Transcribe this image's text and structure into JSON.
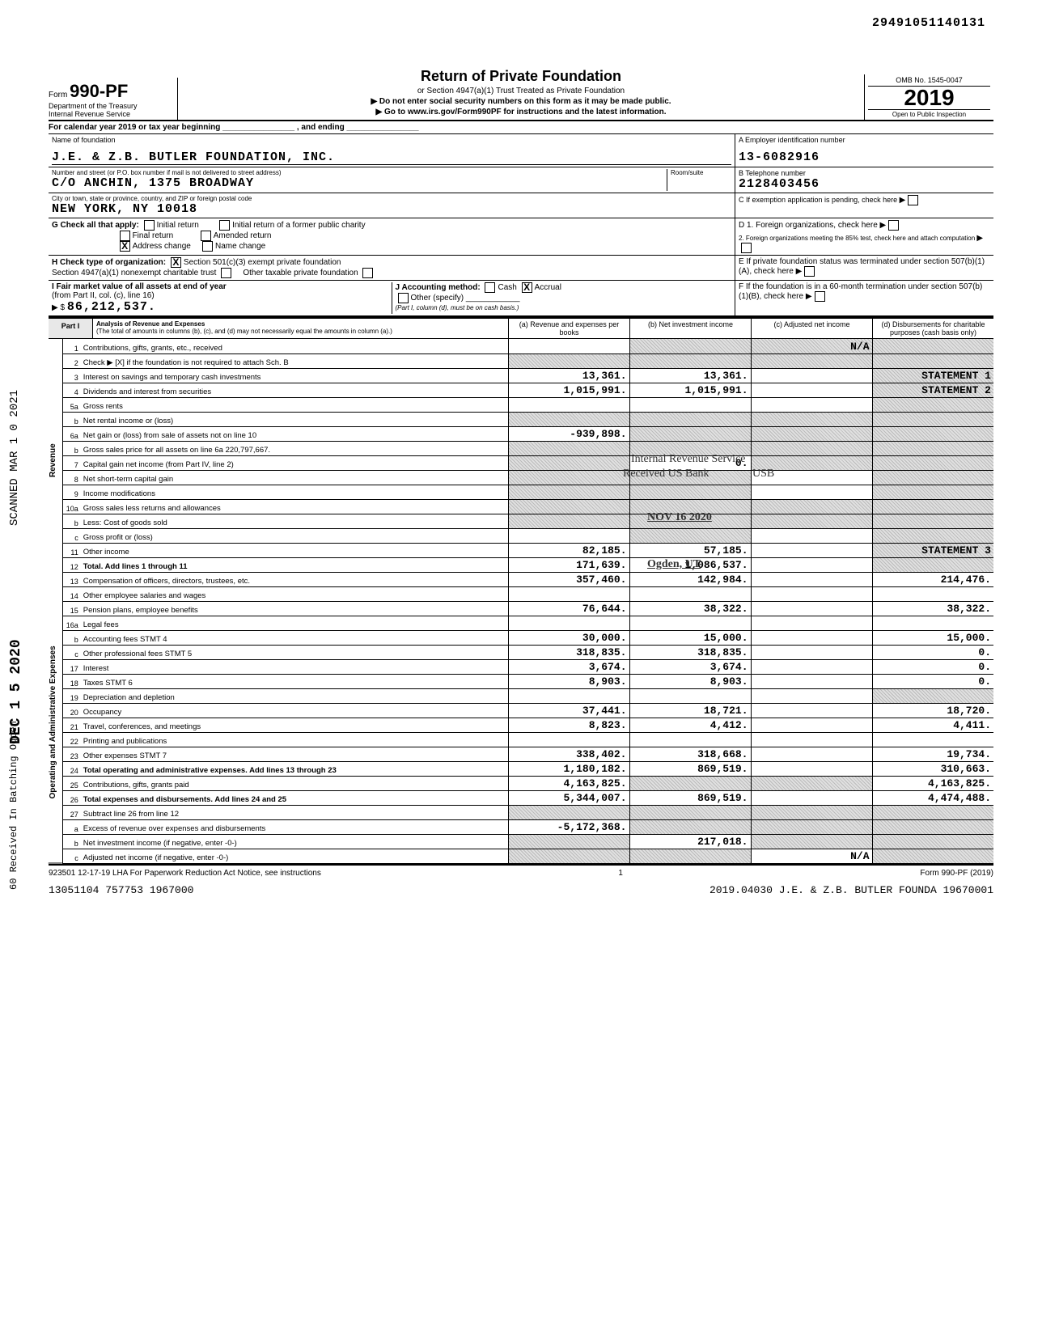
{
  "top_number": "29491051140131",
  "form": {
    "number": "990-PF",
    "formword": "Form",
    "dept": "Department of the Treasury",
    "irs": "Internal Revenue Service",
    "title": "Return of Private Foundation",
    "sub1": "or Section 4947(a)(1) Trust Treated as Private Foundation",
    "sub2": "▶ Do not enter social security numbers on this form as it may be made public.",
    "sub3": "▶ Go to www.irs.gov/Form990PF for instructions and the latest information.",
    "omb": "OMB No. 1545-0047",
    "year": "2019",
    "open": "Open to Public Inspection"
  },
  "calendar_row": "For calendar year 2019 or tax year beginning ________________ , and ending ________________",
  "ident": {
    "name_label": "Name of foundation",
    "name": "J.E. & Z.B. BUTLER FOUNDATION, INC.",
    "addr_label": "Number and street (or P.O. box number if mail is not delivered to street address)",
    "addr": "C/O ANCHIN, 1375 BROADWAY",
    "room_label": "Room/suite",
    "city_label": "City or town, state or province, country, and ZIP or foreign postal code",
    "city": "NEW YORK, NY  10018",
    "ein_label": "A Employer identification number",
    "ein": "13-6082916",
    "tel_label": "B Telephone number",
    "tel": "2128403456",
    "c_label": "C If exemption application is pending, check here",
    "d1_label": "D 1. Foreign organizations, check here",
    "d2_label": "2. Foreign organizations meeting the 85% test, check here and attach computation",
    "e_label": "E If private foundation status was terminated under section 507(b)(1)(A), check here",
    "f_label": "F If the foundation is in a 60-month termination under section 507(b)(1)(B), check here"
  },
  "g": {
    "label": "G  Check all that apply:",
    "initial": "Initial return",
    "final": "Final return",
    "address_change": "Address change",
    "initial_former": "Initial return of a former public charity",
    "amended": "Amended return",
    "name_change": "Name change",
    "address_change_checked": "X"
  },
  "h": {
    "label": "H  Check type of organization:",
    "opt1": "Section 501(c)(3) exempt private foundation",
    "opt1_checked": "X",
    "opt2": "Section 4947(a)(1) nonexempt charitable trust",
    "opt3": "Other taxable private foundation"
  },
  "i": {
    "label": "I  Fair market value of all assets at end of year",
    "sub": "(from Part II, col. (c), line 16)",
    "arrow": "▶ $",
    "value": "86,212,537."
  },
  "j": {
    "label": "J  Accounting method:",
    "cash": "Cash",
    "accrual": "Accrual",
    "accrual_checked": "X",
    "other": "Other (specify)",
    "note": "(Part I, column (d), must be on cash basis.)"
  },
  "part1": {
    "label": "Part I",
    "title": "Analysis of Revenue and Expenses",
    "note": "(The total of amounts in columns (b), (c), and (d) may not necessarily equal the amounts in column (a).)",
    "col_a": "(a) Revenue and expenses per books",
    "col_b": "(b) Net investment income",
    "col_c": "(c) Adjusted net income",
    "col_d": "(d) Disbursements for charitable purposes (cash basis only)"
  },
  "section_labels": {
    "revenue": "Revenue",
    "opadmin": "Operating and Administrative Expenses"
  },
  "rows": [
    {
      "n": "1",
      "lbl": "Contributions, gifts, grants, etc., received",
      "a": "",
      "b": "",
      "c": "N/A",
      "d": "",
      "shade_b": true,
      "shade_c": true,
      "shade_d": true
    },
    {
      "n": "2",
      "lbl": "Check ▶ [X] if the foundation is not required to attach Sch. B",
      "a": "",
      "b": "",
      "c": "",
      "d": "",
      "shade_a": true,
      "shade_b": true,
      "shade_c": true,
      "shade_d": true
    },
    {
      "n": "3",
      "lbl": "Interest on savings and temporary cash investments",
      "a": "13,361.",
      "b": "13,361.",
      "c": "",
      "d": "STATEMENT 1",
      "shade_d": true
    },
    {
      "n": "4",
      "lbl": "Dividends and interest from securities",
      "a": "1,015,991.",
      "b": "1,015,991.",
      "c": "",
      "d": "STATEMENT 2",
      "shade_d": true
    },
    {
      "n": "5a",
      "lbl": "Gross rents",
      "a": "",
      "b": "",
      "c": "",
      "d": "",
      "shade_d": true
    },
    {
      "n": "b",
      "lbl": "Net rental income or (loss)",
      "a": "",
      "b": "",
      "c": "",
      "d": "",
      "shade_a": true,
      "shade_b": true,
      "shade_c": true,
      "shade_d": true
    },
    {
      "n": "6a",
      "lbl": "Net gain or (loss) from sale of assets not on line 10",
      "a": "-939,898.",
      "b": "",
      "c": "",
      "d": "",
      "shade_b": true,
      "shade_c": true,
      "shade_d": true
    },
    {
      "n": "b",
      "lbl": "Gross sales price for all assets on line 6a   220,797,667.",
      "a": "",
      "b": "",
      "c": "",
      "d": "",
      "shade_a": true,
      "shade_b": true,
      "shade_c": true,
      "shade_d": true
    },
    {
      "n": "7",
      "lbl": "Capital gain net income (from Part IV, line 2)",
      "a": "",
      "b": "0.",
      "c": "",
      "d": "",
      "shade_a": true,
      "shade_c": true,
      "shade_d": true
    },
    {
      "n": "8",
      "lbl": "Net short-term capital gain",
      "a": "",
      "b": "",
      "c": "",
      "d": "",
      "shade_a": true,
      "shade_b": true,
      "shade_d": true
    },
    {
      "n": "9",
      "lbl": "Income modifications",
      "a": "",
      "b": "",
      "c": "",
      "d": "",
      "shade_a": true,
      "shade_b": true,
      "shade_d": true
    },
    {
      "n": "10a",
      "lbl": "Gross sales less returns and allowances",
      "a": "",
      "b": "",
      "c": "",
      "d": "",
      "shade_a": true,
      "shade_b": true,
      "shade_c": true,
      "shade_d": true
    },
    {
      "n": "b",
      "lbl": "Less: Cost of goods sold",
      "a": "",
      "b": "",
      "c": "",
      "d": "",
      "shade_a": true,
      "shade_b": true,
      "shade_c": true,
      "shade_d": true
    },
    {
      "n": "c",
      "lbl": "Gross profit or (loss)",
      "a": "",
      "b": "",
      "c": "",
      "d": "",
      "shade_b": true,
      "shade_d": true
    },
    {
      "n": "11",
      "lbl": "Other income",
      "a": "82,185.",
      "b": "57,185.",
      "c": "",
      "d": "STATEMENT 3",
      "shade_d": true
    },
    {
      "n": "12",
      "lbl": "Total. Add lines 1 through 11",
      "a": "171,639.",
      "b": "1,086,537.",
      "c": "",
      "d": "",
      "shade_d": true,
      "bold": true
    },
    {
      "n": "13",
      "lbl": "Compensation of officers, directors, trustees, etc.",
      "a": "357,460.",
      "b": "142,984.",
      "c": "",
      "d": "214,476."
    },
    {
      "n": "14",
      "lbl": "Other employee salaries and wages",
      "a": "",
      "b": "",
      "c": "",
      "d": ""
    },
    {
      "n": "15",
      "lbl": "Pension plans, employee benefits",
      "a": "76,644.",
      "b": "38,322.",
      "c": "",
      "d": "38,322."
    },
    {
      "n": "16a",
      "lbl": "Legal fees",
      "a": "",
      "b": "",
      "c": "",
      "d": ""
    },
    {
      "n": "b",
      "lbl": "Accounting fees                          STMT 4",
      "a": "30,000.",
      "b": "15,000.",
      "c": "",
      "d": "15,000."
    },
    {
      "n": "c",
      "lbl": "Other professional fees              STMT 5",
      "a": "318,835.",
      "b": "318,835.",
      "c": "",
      "d": "0."
    },
    {
      "n": "17",
      "lbl": "Interest",
      "a": "3,674.",
      "b": "3,674.",
      "c": "",
      "d": "0."
    },
    {
      "n": "18",
      "lbl": "Taxes                                        STMT 6",
      "a": "8,903.",
      "b": "8,903.",
      "c": "",
      "d": "0."
    },
    {
      "n": "19",
      "lbl": "Depreciation and depletion",
      "a": "",
      "b": "",
      "c": "",
      "d": "",
      "shade_d": true
    },
    {
      "n": "20",
      "lbl": "Occupancy",
      "a": "37,441.",
      "b": "18,721.",
      "c": "",
      "d": "18,720."
    },
    {
      "n": "21",
      "lbl": "Travel, conferences, and meetings",
      "a": "8,823.",
      "b": "4,412.",
      "c": "",
      "d": "4,411."
    },
    {
      "n": "22",
      "lbl": "Printing and publications",
      "a": "",
      "b": "",
      "c": "",
      "d": ""
    },
    {
      "n": "23",
      "lbl": "Other expenses                          STMT 7",
      "a": "338,402.",
      "b": "318,668.",
      "c": "",
      "d": "19,734."
    },
    {
      "n": "24",
      "lbl": "Total operating and administrative expenses. Add lines 13 through 23",
      "a": "1,180,182.",
      "b": "869,519.",
      "c": "",
      "d": "310,663.",
      "bold": true
    },
    {
      "n": "25",
      "lbl": "Contributions, gifts, grants paid",
      "a": "4,163,825.",
      "b": "",
      "c": "",
      "d": "4,163,825.",
      "shade_b": true,
      "shade_c": true
    },
    {
      "n": "26",
      "lbl": "Total expenses and disbursements. Add lines 24 and 25",
      "a": "5,344,007.",
      "b": "869,519.",
      "c": "",
      "d": "4,474,488.",
      "bold": true
    },
    {
      "n": "27",
      "lbl": "Subtract line 26 from line 12",
      "a": "",
      "b": "",
      "c": "",
      "d": "",
      "shade_a": true,
      "shade_b": true,
      "shade_c": true,
      "shade_d": true
    },
    {
      "n": "a",
      "lbl": "Excess of revenue over expenses and disbursements",
      "a": "-5,172,368.",
      "b": "",
      "c": "",
      "d": "",
      "shade_b": true,
      "shade_c": true,
      "shade_d": true
    },
    {
      "n": "b",
      "lbl": "Net investment income (if negative, enter -0-)",
      "a": "",
      "b": "217,018.",
      "c": "",
      "d": "",
      "shade_a": true,
      "shade_c": true,
      "shade_d": true
    },
    {
      "n": "c",
      "lbl": "Adjusted net income (if negative, enter -0-)",
      "a": "",
      "b": "",
      "c": "N/A",
      "d": "",
      "shade_a": true,
      "shade_b": true,
      "shade_d": true
    }
  ],
  "stamps": {
    "irs_received": "Internal Revenue Service",
    "received_us": "Received US Bank",
    "usb": "USB",
    "nov": "NOV 16 2020",
    "ogden": "Ogden, UT"
  },
  "side": {
    "scanned": "SCANNED MAR 1 0 2021",
    "dec": "DEC 1 5 2020",
    "received": "60 Received In Batching Ogden"
  },
  "footer": {
    "left": "923501 12-17-19   LHA  For Paperwork Reduction Act Notice, see instructions",
    "page": "1",
    "right": "Form 990-PF (2019)",
    "line2_left": "13051104 757753 1967000",
    "line2_right": "2019.04030 J.E. & Z.B. BUTLER FOUNDA 19670001"
  }
}
